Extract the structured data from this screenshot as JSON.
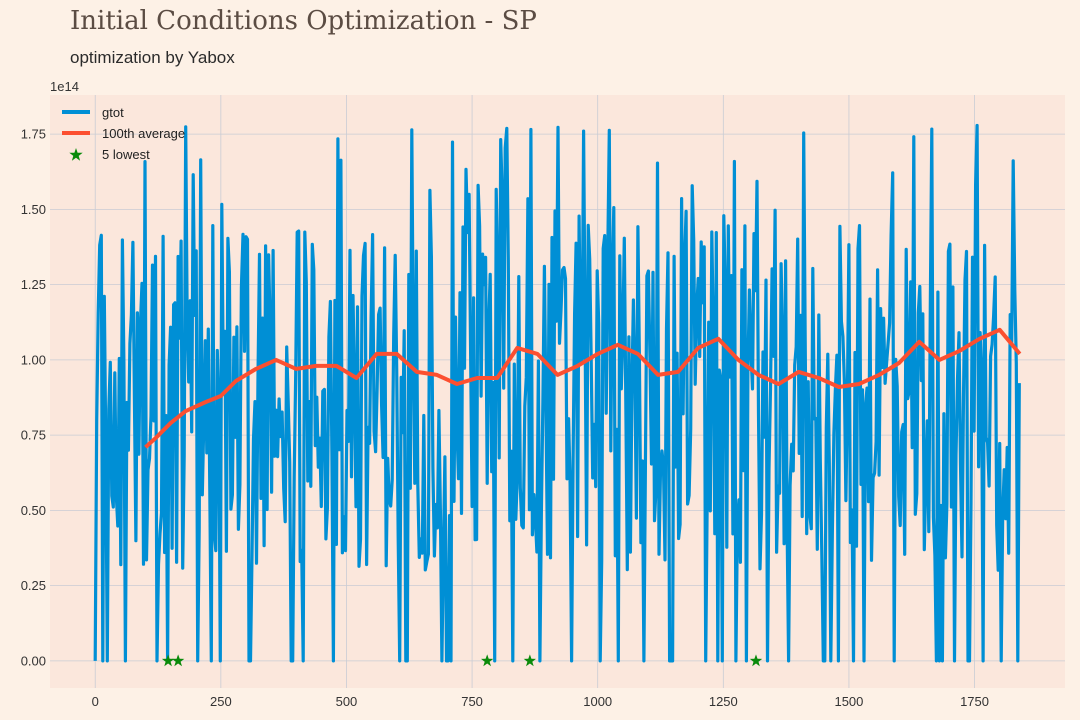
{
  "title": "Initial Conditions Optimization - SP",
  "subtitle": "optimization by Yabox",
  "chart_data": {
    "type": "line",
    "xlabel": "",
    "ylabel": "",
    "y_offset_text": "1e14",
    "xlim": [
      -90,
      1930
    ],
    "ylim": [
      -0.09,
      1.88
    ],
    "x_ticks": [
      0,
      250,
      500,
      750,
      1000,
      1250,
      1500,
      1750
    ],
    "x_tick_labels": [
      "0",
      "250",
      "500",
      "750",
      "1000",
      "1250",
      "1500",
      "1750"
    ],
    "y_ticks": [
      0.0,
      0.25,
      0.5,
      0.75,
      1.0,
      1.25,
      1.5,
      1.75
    ],
    "y_tick_labels": [
      "0.00",
      "0.25",
      "0.50",
      "0.75",
      "1.00",
      "1.25",
      "1.50",
      "1.75"
    ],
    "grid": true,
    "legend_placement": "top-left",
    "colors": {
      "background": "#fdf1e6",
      "plot_background": "#fbe7dc",
      "grid": "#c9ccd4",
      "gtot": "#008fd5",
      "average": "#fc4f30",
      "lowest": "#0a8a0a"
    },
    "series": [
      {
        "name": "gtot",
        "style": "line",
        "x_range": [
          0,
          1840
        ],
        "summary": {
          "min": 0.0,
          "max": 1.79,
          "mean": 0.97
        }
      },
      {
        "name": "100th average",
        "style": "line",
        "x": [
          100,
          120,
          150,
          180,
          220,
          250,
          280,
          320,
          360,
          400,
          440,
          480,
          520,
          560,
          600,
          640,
          680,
          720,
          760,
          800,
          840,
          880,
          920,
          960,
          1000,
          1040,
          1080,
          1120,
          1160,
          1200,
          1240,
          1280,
          1320,
          1360,
          1400,
          1440,
          1480,
          1520,
          1560,
          1600,
          1640,
          1680,
          1720,
          1760,
          1800,
          1840
        ],
        "y": [
          0.71,
          0.74,
          0.79,
          0.83,
          0.86,
          0.88,
          0.93,
          0.97,
          1.0,
          0.97,
          0.98,
          0.98,
          0.94,
          1.02,
          1.02,
          0.96,
          0.95,
          0.92,
          0.94,
          0.94,
          1.04,
          1.02,
          0.95,
          0.98,
          1.02,
          1.05,
          1.02,
          0.95,
          0.96,
          1.04,
          1.07,
          1.0,
          0.95,
          0.92,
          0.96,
          0.94,
          0.91,
          0.92,
          0.95,
          0.99,
          1.06,
          1.0,
          1.03,
          1.07,
          1.1,
          1.02
        ]
      },
      {
        "name": "5 lowest",
        "style": "marker",
        "x": [
          145,
          165,
          780,
          865,
          1315
        ],
        "y": [
          0.0,
          0.0,
          0.0,
          0.0,
          0.0
        ]
      }
    ]
  }
}
